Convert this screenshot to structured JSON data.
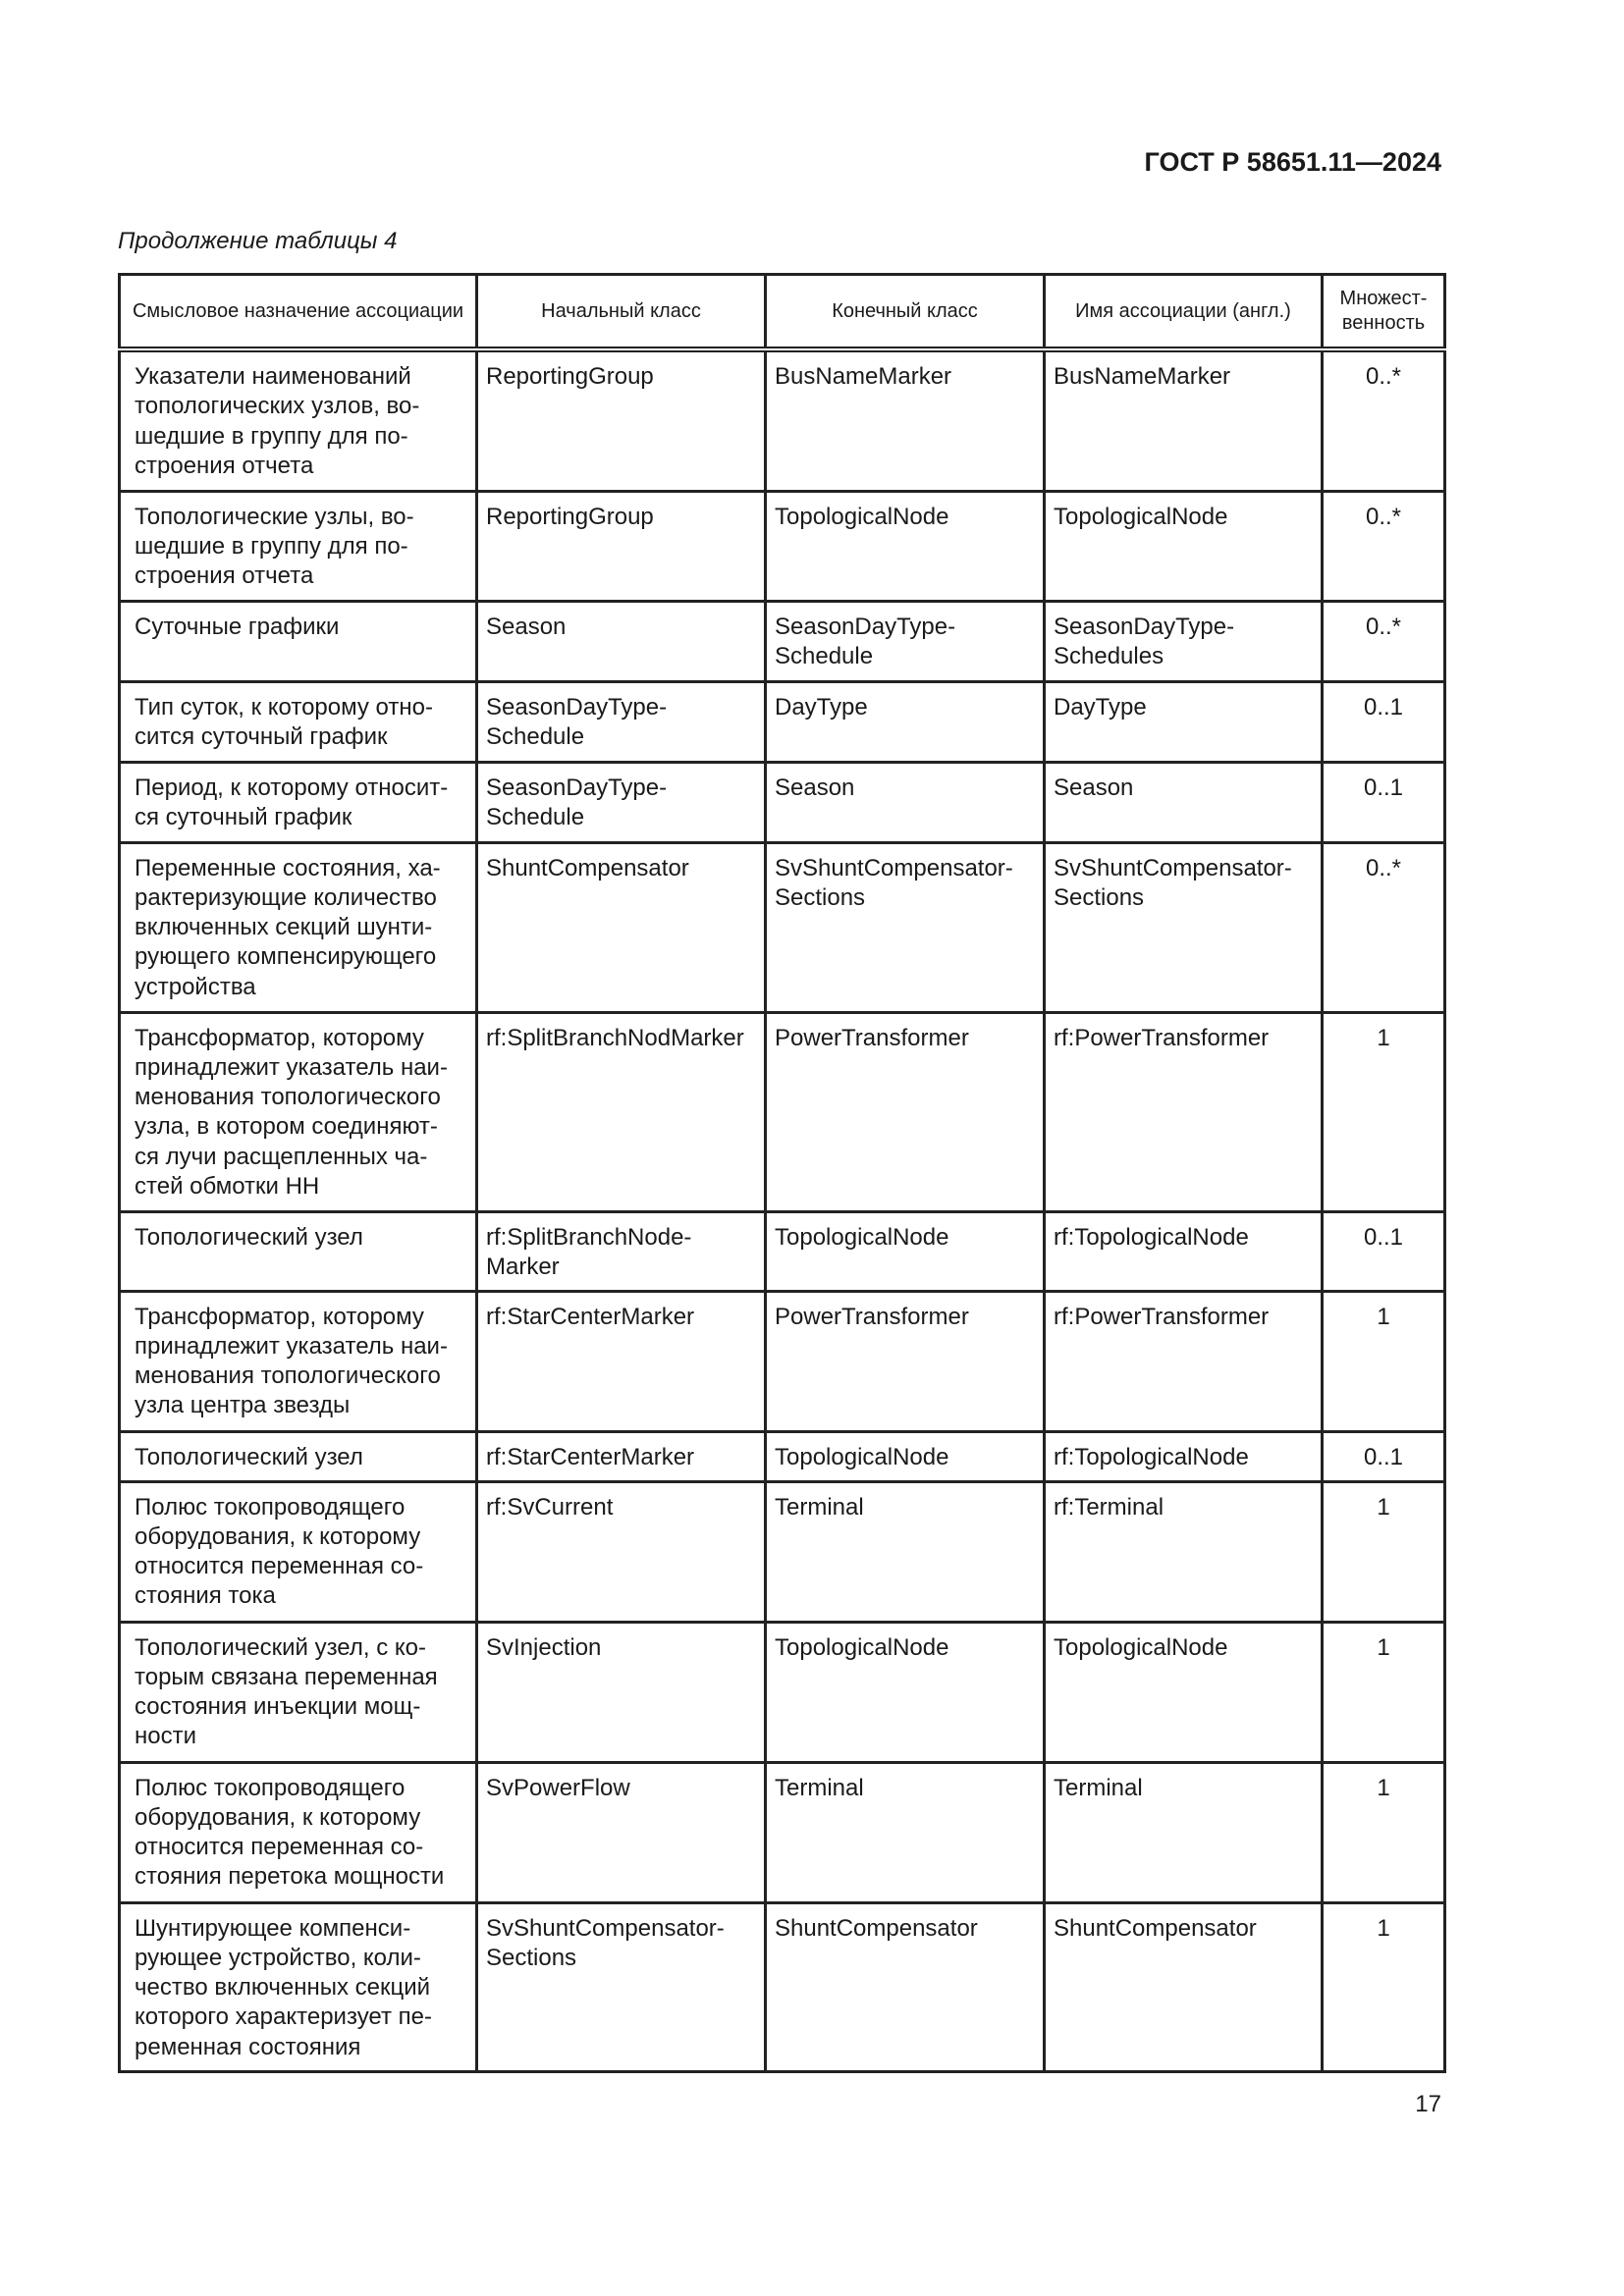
{
  "header": {
    "doc_id": "ГОСТ Р 58651.11—2024"
  },
  "caption": "Продолжение таблицы 4",
  "table": {
    "columns": [
      "Смысловое назначение ассоциации",
      "Начальный класс",
      "Конечный класс",
      "Имя ассоциации (англ.)",
      "Множест-\nвенность"
    ],
    "rows": [
      [
        "Указатели наименований\nтопологических узлов, во-\nшедшие в группу для по-\nстроения отчета",
        "ReportingGroup",
        "BusNameMarker",
        "BusNameMarker",
        "0..*"
      ],
      [
        "Топологические узлы, во-\nшедшие в группу для по-\nстроения отчета",
        "ReportingGroup",
        "TopologicalNode",
        "TopologicalNode",
        "0..*"
      ],
      [
        "Суточные графики",
        "Season",
        "SeasonDayType-\nSchedule",
        "SeasonDayType-\nSchedules",
        "0..*"
      ],
      [
        "Тип суток, к которому отно-\nсится суточный график",
        "SeasonDayType-\nSchedule",
        "DayType",
        "DayType",
        "0..1"
      ],
      [
        "Период, к которому относит-\nся суточный график",
        "SeasonDayType-\nSchedule",
        "Season",
        "Season",
        "0..1"
      ],
      [
        "Переменные состояния, ха-\nрактеризующие количество\nвключенных секций шунти-\nрующего компенсирующего\nустройства",
        "ShuntCompensator",
        "SvShuntCompensator-\nSections",
        "SvShuntCompensator-\nSections",
        "0..*"
      ],
      [
        "Трансформатор, которому\nпринадлежит указатель наи-\nменования топологического\nузла, в котором соединяют-\nся лучи расщепленных ча-\nстей обмотки НН",
        "rf:SplitBranchNodMarker",
        "PowerTransformer",
        "rf:PowerTransformer",
        "1"
      ],
      [
        "Топологический узел",
        "rf:SplitBranchNode-\nMarker",
        "TopologicalNode",
        "rf:TopologicalNode",
        "0..1"
      ],
      [
        "Трансформатор, которому\nпринадлежит указатель наи-\nменования топологического\nузла центра звезды",
        "rf:StarCenterMarker",
        "PowerTransformer",
        "rf:PowerTransformer",
        "1"
      ],
      [
        "Топологический узел",
        "rf:StarCenterMarker",
        "TopologicalNode",
        "rf:TopologicalNode",
        "0..1"
      ],
      [
        "Полюс токопроводящего\nоборудования, к которому\nотносится переменная со-\nстояния тока",
        "rf:SvCurrent",
        "Terminal",
        "rf:Terminal",
        "1"
      ],
      [
        "Топологический узел, с ко-\nторым связана переменная\nсостояния инъекции мощ-\nности",
        "SvInjection",
        "TopologicalNode",
        "TopologicalNode",
        "1"
      ],
      [
        "Полюс токопроводящего\nоборудования, к которому\nотносится переменная со-\nстояния перетока мощности",
        "SvPowerFlow",
        "Terminal",
        "Terminal",
        "1"
      ],
      [
        "Шунтирующее компенси-\nрующее устройство, коли-\nчество включенных секций\nкоторого характеризует пе-\nременная состояния",
        "SvShuntCompensator-\nSections",
        "ShuntCompensator",
        "ShuntCompensator",
        "1"
      ]
    ]
  },
  "page_number": "17"
}
